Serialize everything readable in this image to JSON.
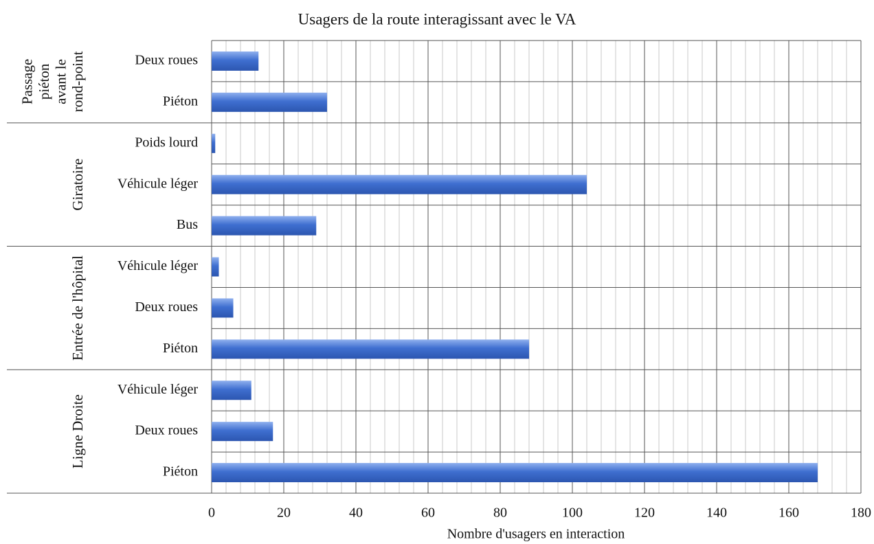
{
  "chart_data": {
    "type": "bar",
    "orientation": "horizontal",
    "title": "Usagers de la route interagissant avec le VA",
    "x_label": "Nombre d'usagers en interaction",
    "color": "#3f6fd0",
    "groups": [
      {
        "label_lines": [
          "Passage",
          "piéton",
          "avant le",
          "rond-point"
        ],
        "categories": [
          "Deux roues",
          "Piéton"
        ],
        "values": [
          13,
          32
        ]
      },
      {
        "label_lines": [
          "Giratoire"
        ],
        "categories": [
          "Poids lourd",
          "Véhicule léger",
          "Bus"
        ],
        "values": [
          1,
          104,
          29
        ]
      },
      {
        "label_lines": [
          "Entrée de l'hôpital"
        ],
        "categories": [
          "Véhicule léger",
          "Deux roues",
          "Piéton"
        ],
        "values": [
          2,
          6,
          88
        ]
      },
      {
        "label_lines": [
          "Ligne Droite"
        ],
        "categories": [
          "Véhicule léger",
          "Deux roues",
          "Piéton"
        ],
        "values": [
          11,
          17,
          168
        ]
      }
    ],
    "xlim": [
      0,
      180
    ],
    "xticks": [
      0,
      20,
      40,
      60,
      80,
      100,
      120,
      140,
      160,
      180
    ],
    "grid": true,
    "minor_grid_step": 4
  }
}
